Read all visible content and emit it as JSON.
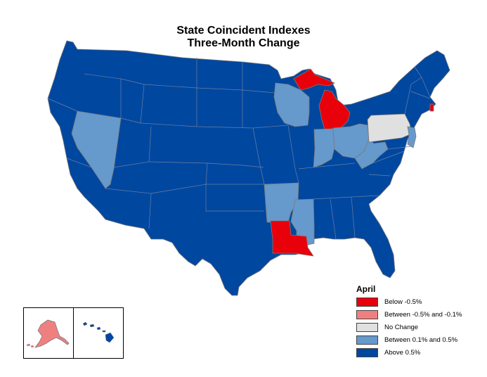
{
  "title_line1": "State Coincident Indexes",
  "title_line2": "Three-Month Change",
  "legend": {
    "heading": "April",
    "items": [
      {
        "label": "Below -0.5%",
        "color": "#e8000b"
      },
      {
        "label": "Between -0.5% and -0.1%",
        "color": "#f08080"
      },
      {
        "label": "No Change",
        "color": "#e0e0e0"
      },
      {
        "label": "Between 0.1% and 0.5%",
        "color": "#6699cc"
      },
      {
        "label": "Above 0.5%",
        "color": "#0047a0"
      }
    ]
  },
  "categories": {
    "below_neg_0_5": [
      "Michigan",
      "Louisiana",
      "Rhode Island"
    ],
    "between_neg_0_5_and_neg_0_1": [
      "Alaska"
    ],
    "no_change": [
      "Pennsylvania"
    ],
    "between_0_1_and_0_5": [
      "Nevada",
      "Wisconsin",
      "Indiana",
      "Ohio",
      "West Virginia",
      "Arkansas",
      "Mississippi",
      "New Jersey"
    ],
    "above_0_5": [
      "all other states",
      "Hawaii"
    ]
  }
}
